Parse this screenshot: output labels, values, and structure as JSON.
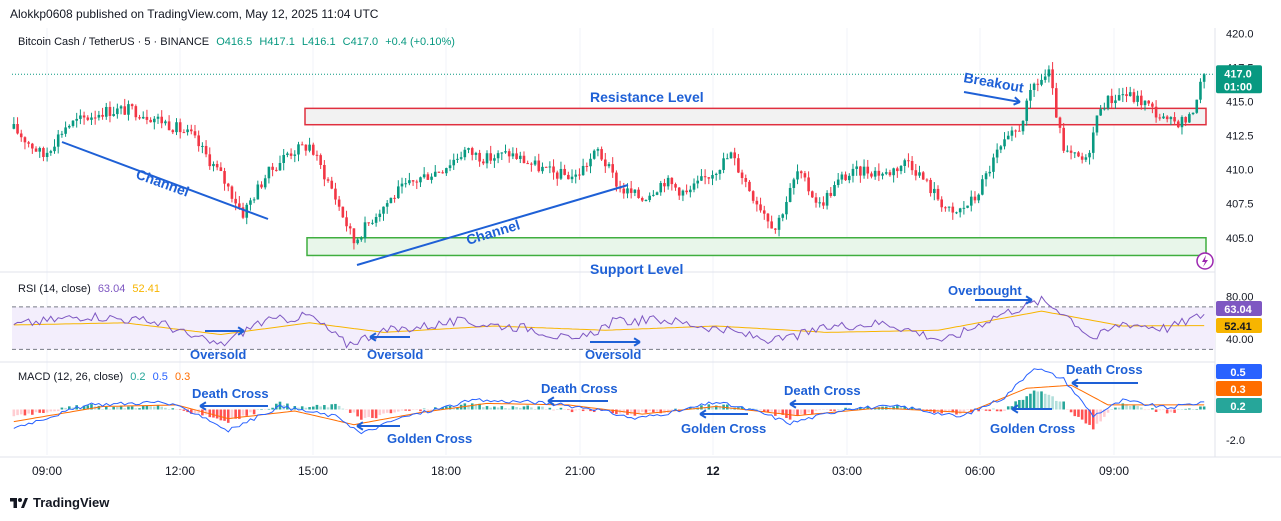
{
  "publisher": "Alokkp0608 published on TradingView.com, May 12, 2025 11:04 UTC",
  "footer": {
    "brand": "TradingView"
  },
  "symbol_legend": {
    "name": "Bitcoin Cash / TetherUS · 5 · BINANCE",
    "open": "O416.5",
    "high": "H417.1",
    "low": "L416.1",
    "close": "C417.0",
    "change": "+0.4 (+0.10%)"
  },
  "rsi_legend": {
    "name": "RSI (14, close)",
    "value": "63.04",
    "ma": "52.41"
  },
  "macd_legend": {
    "name": "MACD (12, 26, close)",
    "hist": "0.2",
    "macd": "0.5",
    "signal": "0.3"
  },
  "price_badges": {
    "price": "417.0",
    "countdown": "01:00"
  },
  "rsi_badges": {
    "rsi": "63.04",
    "ma": "52.41"
  },
  "macd_badges": {
    "macd": "0.5",
    "signal": "0.3",
    "hist": "0.2"
  },
  "colors": {
    "up": "#089981",
    "down": "#f23645",
    "blue": "#2962ff",
    "orange": "#ff6d00",
    "rsi": "#7e57c2",
    "rsi_ma": "#f7b500",
    "resistance": "#e0303f",
    "support": "#3fae3f",
    "annotation": "#1e60d6"
  },
  "chart_data": [
    {
      "type": "candlestick",
      "title": "Bitcoin Cash / TetherUS · 5 · BINANCE",
      "ylim": [
        403.0,
        420.4
      ],
      "y_ticks": [
        "420.0",
        "417.5",
        "415.0",
        "412.5",
        "410.0",
        "407.5",
        "405.0"
      ],
      "x_ticks": [
        "09:00",
        "12:00",
        "15:00",
        "18:00",
        "21:00",
        "12",
        "03:00",
        "06:00",
        "09:00"
      ],
      "anchors": [
        [
          0,
          413.0
        ],
        [
          8,
          411.0
        ],
        [
          14,
          413.2
        ],
        [
          24,
          414.3
        ],
        [
          32,
          414.4
        ],
        [
          40,
          413.6
        ],
        [
          48,
          412.5
        ],
        [
          56,
          409.6
        ],
        [
          62,
          406.8
        ],
        [
          68,
          409.5
        ],
        [
          74,
          411.2
        ],
        [
          80,
          411.8
        ],
        [
          86,
          408.6
        ],
        [
          92,
          404.7
        ],
        [
          98,
          406.8
        ],
        [
          104,
          408.4
        ],
        [
          110,
          409.4
        ],
        [
          116,
          410.1
        ],
        [
          122,
          411.4
        ],
        [
          128,
          410.8
        ],
        [
          134,
          411.2
        ],
        [
          140,
          410.4
        ],
        [
          146,
          409.7
        ],
        [
          152,
          409.5
        ],
        [
          158,
          411.4
        ],
        [
          164,
          408.6
        ],
        [
          170,
          407.9
        ],
        [
          176,
          409.2
        ],
        [
          182,
          408.2
        ],
        [
          188,
          409.6
        ],
        [
          194,
          411.1
        ],
        [
          200,
          408.1
        ],
        [
          206,
          405.7
        ],
        [
          212,
          409.8
        ],
        [
          218,
          407.4
        ],
        [
          224,
          409.4
        ],
        [
          230,
          410.0
        ],
        [
          236,
          409.7
        ],
        [
          242,
          410.7
        ],
        [
          248,
          408.6
        ],
        [
          254,
          406.6
        ],
        [
          260,
          407.9
        ],
        [
          266,
          411.2
        ],
        [
          272,
          413.1
        ],
        [
          276,
          416.2
        ],
        [
          280,
          417.0
        ],
        [
          284,
          411.2
        ],
        [
          290,
          410.6
        ],
        [
          294,
          414.8
        ],
        [
          300,
          415.6
        ],
        [
          306,
          414.9
        ],
        [
          312,
          413.4
        ],
        [
          318,
          413.7
        ],
        [
          322,
          417.0
        ]
      ],
      "last": 417.0,
      "annotations": [
        "Resistance Level",
        "Support Level",
        "Channel",
        "Channel",
        "Breakout"
      ],
      "zones": [
        {
          "name": "Resistance Level",
          "from": 413.3,
          "to": 414.5
        },
        {
          "name": "Support Level",
          "from": 403.7,
          "to": 405.0
        }
      ]
    },
    {
      "type": "line",
      "title": "RSI (14, close)",
      "ylim": [
        20,
        100
      ],
      "y_ticks": [
        "80.00",
        "40.00"
      ],
      "levels": [
        70,
        30
      ],
      "series": [
        {
          "name": "RSI",
          "anchors": [
            [
              0,
              53
            ],
            [
              20,
              62
            ],
            [
              40,
              55
            ],
            [
              48,
              42
            ],
            [
              56,
              34
            ],
            [
              66,
              55
            ],
            [
              80,
              62
            ],
            [
              90,
              35
            ],
            [
              100,
              47
            ],
            [
              120,
              56
            ],
            [
              140,
              50
            ],
            [
              152,
              37
            ],
            [
              162,
              56
            ],
            [
              176,
              58
            ],
            [
              188,
              51
            ],
            [
              206,
              38
            ],
            [
              222,
              52
            ],
            [
              236,
              55
            ],
            [
              252,
              38
            ],
            [
              266,
              62
            ],
            [
              278,
              76
            ],
            [
              284,
              65
            ],
            [
              292,
              40
            ],
            [
              300,
              55
            ],
            [
              312,
              50
            ],
            [
              322,
              63.04
            ]
          ]
        },
        {
          "name": "RSI MA",
          "anchors": [
            [
              0,
              53
            ],
            [
              30,
              55
            ],
            [
              56,
              44
            ],
            [
              80,
              55
            ],
            [
              100,
              46
            ],
            [
              130,
              52
            ],
            [
              160,
              48
            ],
            [
              190,
              52
            ],
            [
              220,
              46
            ],
            [
              250,
              48
            ],
            [
              278,
              66
            ],
            [
              300,
              52
            ],
            [
              322,
              52.41
            ]
          ]
        }
      ],
      "annotations": [
        "Oversold",
        "Oversold",
        "Oversold",
        "Overbought"
      ]
    },
    {
      "type": "line",
      "title": "MACD (12, 26, close)",
      "ylim": [
        -3.0,
        3.0
      ],
      "y_ticks": [
        "-2.0"
      ],
      "series": [
        {
          "name": "MACD",
          "anchors": [
            [
              0,
              -1.2
            ],
            [
              20,
              0.3
            ],
            [
              40,
              0.5
            ],
            [
              50,
              -0.3
            ],
            [
              58,
              -1.4
            ],
            [
              72,
              0.2
            ],
            [
              88,
              -0.5
            ],
            [
              94,
              -1.6
            ],
            [
              104,
              -0.6
            ],
            [
              124,
              0.6
            ],
            [
              140,
              0.5
            ],
            [
              156,
              0.1
            ],
            [
              168,
              -0.6
            ],
            [
              180,
              -0.1
            ],
            [
              190,
              0.5
            ],
            [
              202,
              -0.2
            ],
            [
              210,
              -0.9
            ],
            [
              226,
              0.1
            ],
            [
              240,
              0.2
            ],
            [
              256,
              -0.5
            ],
            [
              268,
              0.8
            ],
            [
              276,
              2.8
            ],
            [
              284,
              2.0
            ],
            [
              292,
              -0.4
            ],
            [
              300,
              0.6
            ],
            [
              312,
              0.1
            ],
            [
              322,
              0.5
            ]
          ]
        },
        {
          "name": "Signal",
          "anchors": [
            [
              0,
              -0.8
            ],
            [
              24,
              0.2
            ],
            [
              44,
              0.3
            ],
            [
              58,
              -0.6
            ],
            [
              76,
              -0.1
            ],
            [
              92,
              -1.0
            ],
            [
              110,
              -0.2
            ],
            [
              128,
              0.4
            ],
            [
              150,
              0.3
            ],
            [
              170,
              -0.3
            ],
            [
              190,
              0.2
            ],
            [
              212,
              -0.4
            ],
            [
              234,
              0.1
            ],
            [
              258,
              -0.2
            ],
            [
              274,
              1.4
            ],
            [
              286,
              1.6
            ],
            [
              296,
              0.3
            ],
            [
              312,
              0.3
            ],
            [
              322,
              0.3
            ]
          ]
        }
      ],
      "annotations": [
        "Death Cross",
        "Golden Cross",
        "Death Cross",
        "Golden Cross",
        "Death Cross",
        "Golden Cross",
        "Death Cross",
        "Golden Cross"
      ]
    }
  ]
}
